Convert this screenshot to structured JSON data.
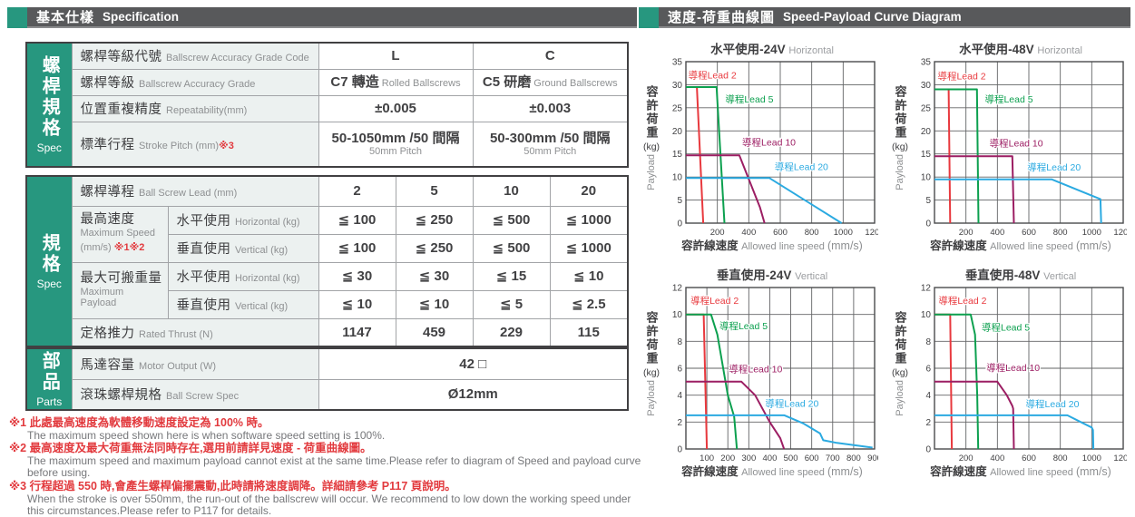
{
  "accent_teal": "#27977f",
  "header_bar_color": "#58595b",
  "left": {
    "header": {
      "cjk": "基本仕樣",
      "en": "Specification"
    },
    "table1": {
      "group": {
        "cjk": "螺桿規格",
        "en": "Spec"
      },
      "rows": [
        {
          "label_cjk": "螺桿等級代號",
          "label_en": "Ballscrew Accuracy Grade Code",
          "note": "",
          "cells": [
            {
              "main": "L"
            },
            {
              "main": "C"
            }
          ]
        },
        {
          "label_cjk": "螺桿等級",
          "label_en": "Ballscrew Accuracy Grade",
          "note": "",
          "cells": [
            {
              "main": "C7 轉造",
              "sub_inline": "Rolled Ballscrews"
            },
            {
              "main": "C5 研磨",
              "sub_inline": "Ground Ballscrews"
            }
          ]
        },
        {
          "label_cjk": "位置重複精度",
          "label_en": "Repeatability(mm)",
          "note": "",
          "cells": [
            {
              "main": "±0.005"
            },
            {
              "main": "±0.003"
            }
          ]
        },
        {
          "label_cjk": "標準行程",
          "label_en": "Stroke Pitch (mm)",
          "note": "※3",
          "cells": [
            {
              "main": "50-1050mm /50 間隔",
              "sub_below": "50mm Pitch"
            },
            {
              "main": "50-300mm /50 間隔",
              "sub_below": "50mm Pitch"
            }
          ]
        }
      ]
    },
    "table2": {
      "spec_group": {
        "cjk": "規格",
        "en": "Spec"
      },
      "parts_group": {
        "cjk": "部品",
        "en": "Parts"
      },
      "lead_row": {
        "label_cjk": "螺桿導程",
        "label_en": "Ball Screw Lead (mm)",
        "values": [
          "2",
          "5",
          "10",
          "20"
        ]
      },
      "speed_group": {
        "label_cjk": "最高速度",
        "label_en": "Maximum Speed",
        "label_en2": "(mm/s)",
        "note": "※1※2",
        "sub_rows": [
          {
            "cjk": "水平使用",
            "en": "Horizontal (kg)",
            "values": [
              "≦ 100",
              "≦ 250",
              "≦ 500",
              "≦ 1000"
            ]
          },
          {
            "cjk": "垂直使用",
            "en": "Vertical (kg)",
            "values": [
              "≦ 100",
              "≦ 250",
              "≦ 500",
              "≦ 1000"
            ]
          }
        ]
      },
      "payload_group": {
        "label_cjk": "最大可搬重量",
        "label_en": "Maximum Payload",
        "label_en2": "",
        "note": "",
        "sub_rows": [
          {
            "cjk": "水平使用",
            "en": "Horizontal (kg)",
            "values": [
              "≦ 30",
              "≦ 30",
              "≦ 15",
              "≦ 10"
            ]
          },
          {
            "cjk": "垂直使用",
            "en": "Vertical (kg)",
            "values": [
              "≦ 10",
              "≦ 10",
              "≦ 5",
              "≦ 2.5"
            ]
          }
        ]
      },
      "thrust_row": {
        "label_cjk": "定格推力",
        "label_en": "Rated Thrust (N)",
        "values": [
          "1147",
          "459",
          "229",
          "115"
        ]
      },
      "parts_rows": [
        {
          "label_cjk": "馬達容量",
          "label_en": "Motor Output (W)",
          "value": "42 □"
        },
        {
          "label_cjk": "滾珠螺桿規格",
          "label_en": "Ball Screw Spec",
          "value": "Ø12mm"
        }
      ]
    },
    "footnotes": [
      {
        "cjk": "※1 此處最高速度為軟體移動速度設定為 100% 時。",
        "en": "The maximum speed shown here is when software speed setting is 100%."
      },
      {
        "cjk": "※2 最高速度及最大荷重無法同時存在,選用前請詳見速度 - 荷重曲線圖。",
        "en": "The maximum speed and maximum payload cannot exist at the same time.Please refer to diagram of Speed and payload curve before using."
      },
      {
        "cjk": "※3 行程超過 550 時,會產生螺桿偏擺震動,此時請將速度調降。詳細請參考 P117 頁說明。",
        "en": "When the stroke is over 550mm, the run-out of the ballscrew will occur. We recommend to low down the working speed under this circumstances.Please refer to P117 for details."
      }
    ]
  },
  "right": {
    "header": {
      "cjk": "速度-荷重曲線圖",
      "en": "Speed-Payload Curve Diagram"
    },
    "axis": {
      "y_cjk": "容許荷重",
      "y_kg": "(kg)",
      "y_en": "Payload",
      "x_cjk": "容許線速度",
      "x_en": "Allowed line speed",
      "x_unit": "(mm/s)"
    }
  },
  "chart_data": {
    "type": "line",
    "grid": true,
    "legend_position": "inline-labels",
    "xlabel": "容許線速度 Allowed line speed (mm/s)",
    "ylabel": "容許荷重 (kg) Payload",
    "charts": [
      {
        "id": "horizontal-24v",
        "title_cjk": "水平使用-24V",
        "title_en": "Horizontal",
        "xlim": [
          0,
          1200
        ],
        "xstep": 200,
        "ylim": [
          0,
          35
        ],
        "ystep": 5,
        "series": [
          {
            "name": "導程Lead 2",
            "color": "#e8393e",
            "points": [
              [
                0,
                29.5
              ],
              [
                70,
                29.5
              ],
              [
                110,
                0
              ]
            ],
            "label_pos": [
              15,
              31.4
            ]
          },
          {
            "name": "導程Lead 5",
            "color": "#0ca04f",
            "points": [
              [
                0,
                29.5
              ],
              [
                195,
                29.5
              ],
              [
                245,
                0
              ]
            ],
            "label_pos": [
              250,
              26.2
            ]
          },
          {
            "name": "導程Lead 10",
            "color": "#9c1e63",
            "points": [
              [
                0,
                14.7
              ],
              [
                340,
                14.7
              ],
              [
                470,
                3.5
              ],
              [
                500,
                0
              ]
            ],
            "label_pos": [
              358,
              16.8
            ]
          },
          {
            "name": "導程Lead 20",
            "color": "#2baae1",
            "points": [
              [
                0,
                9.8
              ],
              [
                530,
                9.8
              ],
              [
                990,
                0
              ]
            ],
            "label_pos": [
              565,
              11.5
            ]
          }
        ]
      },
      {
        "id": "horizontal-48v",
        "title_cjk": "水平使用-48V",
        "title_en": "Horizontal",
        "xlim": [
          0,
          1200
        ],
        "xstep": 200,
        "ylim": [
          0,
          35
        ],
        "ystep": 5,
        "series": [
          {
            "name": "導程Lead 2",
            "color": "#e8393e",
            "points": [
              [
                0,
                29
              ],
              [
                90,
                29
              ],
              [
                100,
                0
              ]
            ],
            "label_pos": [
              20,
              31.2
            ]
          },
          {
            "name": "導程Lead 5",
            "color": "#0ca04f",
            "points": [
              [
                0,
                29
              ],
              [
                270,
                29
              ],
              [
                280,
                0
              ]
            ],
            "label_pos": [
              320,
              26.2
            ]
          },
          {
            "name": "導程Lead 10",
            "color": "#9c1e63",
            "points": [
              [
                0,
                14.5
              ],
              [
                495,
                14.5
              ],
              [
                505,
                0
              ]
            ],
            "label_pos": [
              350,
              16.6
            ]
          },
          {
            "name": "導程Lead 20",
            "color": "#2baae1",
            "points": [
              [
                0,
                9.5
              ],
              [
                745,
                9.5
              ],
              [
                1055,
                5.2
              ],
              [
                1060,
                0
              ]
            ],
            "label_pos": [
              590,
              11.4
            ]
          }
        ]
      },
      {
        "id": "vertical-24v",
        "title_cjk": "垂直使用-24V",
        "title_en": "Vertical",
        "xlim": [
          0,
          900
        ],
        "xstep": 100,
        "ylim": [
          0,
          12
        ],
        "ystep": 2,
        "series": [
          {
            "name": "導程Lead 2",
            "color": "#e8393e",
            "points": [
              [
                0,
                10
              ],
              [
                85,
                10
              ],
              [
                100,
                0
              ]
            ],
            "label_pos": [
              22,
              10.8
            ]
          },
          {
            "name": "導程Lead 5",
            "color": "#0ca04f",
            "points": [
              [
                0,
                10
              ],
              [
                120,
                10
              ],
              [
                150,
                8.5
              ],
              [
                200,
                4
              ],
              [
                230,
                2.4
              ],
              [
                243,
                0
              ]
            ],
            "label_pos": [
              160,
              8.9
            ]
          },
          {
            "name": "導程Lead 10",
            "color": "#9c1e63",
            "points": [
              [
                0,
                5
              ],
              [
                265,
                5
              ],
              [
                330,
                4
              ],
              [
                400,
                2
              ],
              [
                450,
                0.8
              ],
              [
                468,
                0
              ]
            ],
            "label_pos": [
              205,
              5.7
            ]
          },
          {
            "name": "導程Lead 20",
            "color": "#2baae1",
            "points": [
              [
                0,
                2.5
              ],
              [
                470,
                2.5
              ],
              [
                560,
                1.9
              ],
              [
                640,
                1.15
              ],
              [
                655,
                0.65
              ],
              [
                720,
                0.45
              ],
              [
                890,
                0.1
              ]
            ],
            "label_pos": [
              378,
              3.15
            ]
          }
        ]
      },
      {
        "id": "vertical-48v",
        "title_cjk": "垂直使用-48V",
        "title_en": "Vertical",
        "xlim": [
          0,
          1200
        ],
        "xstep": 200,
        "ylim": [
          0,
          12
        ],
        "ystep": 2,
        "series": [
          {
            "name": "導程Lead 2",
            "color": "#e8393e",
            "points": [
              [
                0,
                10
              ],
              [
                100,
                10
              ],
              [
                110,
                0
              ]
            ],
            "label_pos": [
              25,
              10.8
            ]
          },
          {
            "name": "導程Lead 5",
            "color": "#0ca04f",
            "points": [
              [
                0,
                10
              ],
              [
                230,
                10
              ],
              [
                258,
                8.5
              ],
              [
                272,
                4
              ],
              [
                278,
                0
              ]
            ],
            "label_pos": [
              300,
              8.8
            ]
          },
          {
            "name": "導程Lead 10",
            "color": "#9c1e63",
            "points": [
              [
                0,
                5
              ],
              [
                400,
                5
              ],
              [
                460,
                4
              ],
              [
                495,
                3.2
              ],
              [
                500,
                3
              ],
              [
                505,
                0
              ]
            ],
            "label_pos": [
              330,
              5.8
            ]
          },
          {
            "name": "導程Lead 20",
            "color": "#2baae1",
            "points": [
              [
                0,
                2.5
              ],
              [
                845,
                2.5
              ],
              [
                930,
                2
              ],
              [
                1000,
                1.6
              ],
              [
                1008,
                1.4
              ],
              [
                1010,
                0
              ]
            ],
            "label_pos": [
              580,
              3.1
            ]
          }
        ]
      }
    ]
  }
}
